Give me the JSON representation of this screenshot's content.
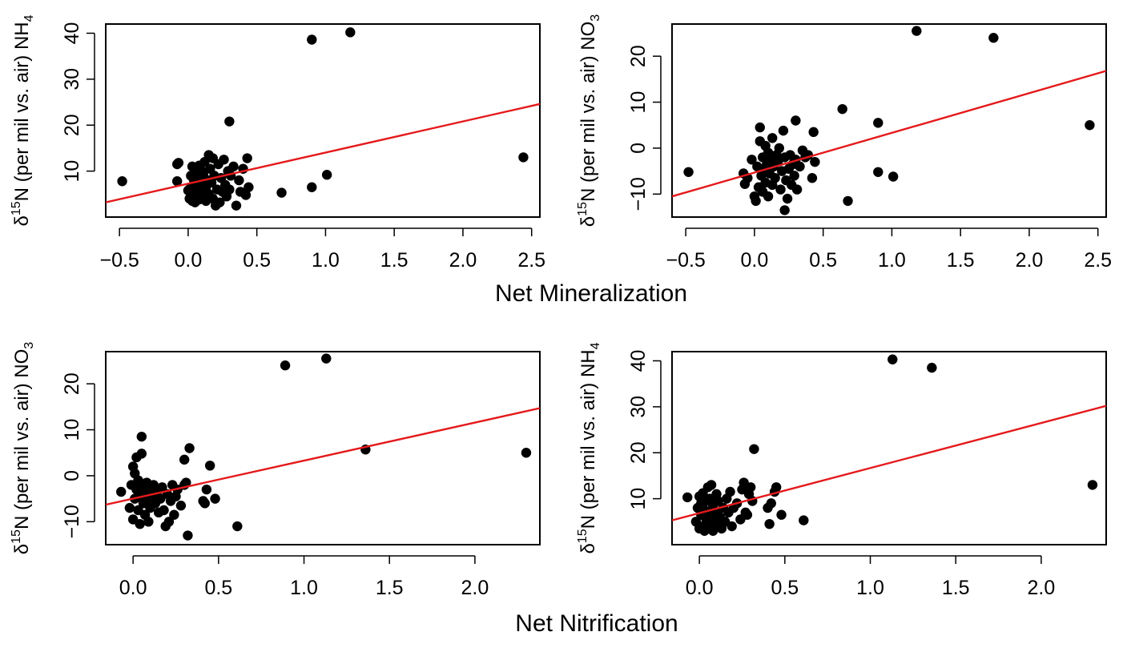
{
  "figure": {
    "xlabel_top": "Net Mineralization",
    "xlabel_bottom": "Net Nitrification"
  },
  "chart_data": [
    {
      "type": "scatter",
      "panel": "top-left",
      "ylabel": {
        "pre": "δ",
        "sup": "15",
        "main": "N (per mil vs. air) NH",
        "sub": "4"
      },
      "xlabel": "Net Mineralization",
      "xlim": [
        -0.6,
        2.56
      ],
      "ylim": [
        0,
        42
      ],
      "xticks": [
        "-0.5",
        "0.0",
        "0.5",
        "1.0",
        "1.5",
        "2.0",
        "2.5"
      ],
      "yticks": [
        "10",
        "20",
        "30",
        "40"
      ],
      "x": [
        -0.48,
        -0.08,
        -0.07,
        -0.08,
        0.0,
        0.01,
        0.02,
        0.02,
        0.03,
        0.03,
        0.04,
        0.04,
        0.05,
        0.05,
        0.06,
        0.06,
        0.07,
        0.07,
        0.08,
        0.08,
        0.09,
        0.09,
        0.1,
        0.1,
        0.11,
        0.11,
        0.12,
        0.13,
        0.13,
        0.14,
        0.15,
        0.15,
        0.16,
        0.17,
        0.18,
        0.18,
        0.19,
        0.2,
        0.21,
        0.22,
        0.23,
        0.24,
        0.25,
        0.26,
        0.27,
        0.28,
        0.29,
        0.3,
        0.31,
        0.33,
        0.35,
        0.37,
        0.38,
        0.4,
        0.42,
        0.43,
        0.44,
        0.3,
        0.68,
        0.9,
        0.9,
        1.01,
        1.18,
        2.44
      ],
      "y": [
        7.8,
        11.5,
        11.8,
        7.8,
        5.8,
        4.0,
        9.0,
        6.5,
        11.0,
        3.5,
        8.2,
        5.0,
        10.5,
        3.2,
        7.0,
        4.5,
        9.8,
        6.0,
        11.2,
        3.8,
        8.5,
        5.5,
        10.0,
        7.2,
        4.2,
        9.2,
        12.0,
        6.5,
        3.5,
        8.0,
        13.5,
        5.0,
        10.5,
        7.5,
        4.0,
        12.8,
        9.0,
        2.5,
        6.0,
        11.5,
        3.2,
        8.5,
        5.5,
        12.5,
        7.0,
        4.5,
        10.0,
        6.0,
        9.0,
        11.0,
        2.5,
        8.0,
        5.5,
        10.5,
        4.8,
        12.8,
        6.5,
        20.8,
        5.3,
        6.5,
        38.6,
        9.2,
        40.2,
        13.0
      ],
      "fit": {
        "x": [
          -0.6,
          2.56
        ],
        "y": [
          3.2,
          24.6
        ]
      }
    },
    {
      "type": "scatter",
      "panel": "top-right",
      "ylabel": {
        "pre": "δ",
        "sup": "15",
        "main": "N (per mil vs. air) NO",
        "sub": "3"
      },
      "xlabel": "Net Mineralization",
      "xlim": [
        -0.6,
        2.56
      ],
      "ylim": [
        -15,
        27
      ],
      "xticks": [
        "-0.5",
        "0.0",
        "0.5",
        "1.0",
        "1.5",
        "2.0",
        "2.5"
      ],
      "yticks": [
        "-10",
        "0",
        "10",
        "20"
      ],
      "x": [
        -0.48,
        -0.08,
        -0.07,
        -0.05,
        -0.02,
        0.0,
        0.01,
        0.02,
        0.03,
        0.04,
        0.04,
        0.05,
        0.06,
        0.06,
        0.07,
        0.08,
        0.08,
        0.09,
        0.1,
        0.1,
        0.11,
        0.12,
        0.13,
        0.13,
        0.14,
        0.15,
        0.16,
        0.17,
        0.18,
        0.19,
        0.2,
        0.21,
        0.22,
        0.23,
        0.24,
        0.25,
        0.26,
        0.27,
        0.28,
        0.29,
        0.3,
        0.31,
        0.33,
        0.35,
        0.37,
        0.39,
        0.42,
        0.43,
        0.44,
        0.22,
        0.3,
        0.64,
        0.68,
        0.9,
        0.9,
        1.01,
        1.18,
        1.74,
        2.44
      ],
      "y": [
        -5.2,
        -5.5,
        -7.8,
        -6.5,
        -2.5,
        -10.5,
        -11.5,
        -4.0,
        -8.5,
        1.5,
        4.5,
        -6.0,
        -2.0,
        -9.5,
        -4.5,
        0.5,
        -7.5,
        -3.5,
        -1.0,
        -10.5,
        -5.5,
        -2.5,
        2.2,
        -8.0,
        -4.0,
        -6.5,
        -1.5,
        -3.0,
        0.0,
        -9.0,
        -5.0,
        3.8,
        -2.0,
        -7.0,
        -11.0,
        -4.5,
        -1.5,
        -8.0,
        -3.5,
        -6.0,
        -2.5,
        -9.0,
        -4.0,
        -0.5,
        -2.0,
        -1.5,
        -6.5,
        3.5,
        -3.0,
        -13.5,
        6.0,
        8.5,
        -11.5,
        5.5,
        -5.2,
        -6.2,
        25.5,
        24.0,
        5.0
      ],
      "fit": {
        "x": [
          -0.6,
          2.56
        ],
        "y": [
          -10.5,
          16.8
        ]
      }
    },
    {
      "type": "scatter",
      "panel": "bottom-left",
      "ylabel": {
        "pre": "δ",
        "sup": "15",
        "main": "N (per mil vs. air) NO",
        "sub": "3"
      },
      "xlabel": "Net Nitrification",
      "xlim": [
        -0.16,
        2.38
      ],
      "ylim": [
        -15,
        27
      ],
      "xticks": [
        "0.0",
        "0.5",
        "1.0",
        "1.5",
        "2.0"
      ],
      "yticks": [
        "-10",
        "0",
        "10",
        "20"
      ],
      "x": [
        -0.07,
        -0.02,
        -0.01,
        0.0,
        0.0,
        0.01,
        0.01,
        0.02,
        0.02,
        0.03,
        0.03,
        0.04,
        0.04,
        0.05,
        0.05,
        0.05,
        0.06,
        0.06,
        0.07,
        0.08,
        0.08,
        0.09,
        0.1,
        0.1,
        0.11,
        0.12,
        0.13,
        0.14,
        0.15,
        0.16,
        0.17,
        0.18,
        0.19,
        0.2,
        0.21,
        0.22,
        0.23,
        0.24,
        0.25,
        0.26,
        0.28,
        0.3,
        0.31,
        0.33,
        0.32,
        0.3,
        0.41,
        0.42,
        0.43,
        0.45,
        0.48,
        0.61,
        0.89,
        1.13,
        1.36,
        2.3
      ],
      "y": [
        -3.5,
        -7.0,
        -2.0,
        2.0,
        -9.5,
        0.5,
        -5.0,
        -3.0,
        4.0,
        -7.5,
        -1.0,
        -4.5,
        -10.5,
        8.5,
        -2.0,
        4.8,
        -6.0,
        -3.5,
        -8.5,
        -1.5,
        -5.5,
        -10.0,
        -3.0,
        -7.0,
        -4.5,
        -2.0,
        -6.0,
        -3.5,
        -8.0,
        -5.0,
        -2.5,
        -7.5,
        -11.0,
        -4.0,
        -10.0,
        -5.5,
        -2.0,
        -8.5,
        -4.5,
        -3.0,
        -6.5,
        -2.0,
        -1.5,
        6.0,
        -13.0,
        3.5,
        -5.5,
        -6.0,
        -3.0,
        2.2,
        -5.0,
        -11.0,
        24.0,
        25.5,
        5.7,
        5.0
      ],
      "fit": {
        "x": [
          -0.16,
          2.38
        ],
        "y": [
          -6.3,
          14.7
        ]
      }
    },
    {
      "type": "scatter",
      "panel": "bottom-right",
      "ylabel": {
        "pre": "δ",
        "sup": "15",
        "main": "N (per mil vs. air) NH",
        "sub": "4"
      },
      "xlabel": "Net Nitrification",
      "xlim": [
        -0.16,
        2.38
      ],
      "ylim": [
        0,
        42
      ],
      "xticks": [
        "0.0",
        "0.5",
        "1.0",
        "1.5",
        "2.0"
      ],
      "yticks": [
        "10",
        "20",
        "30",
        "40"
      ],
      "x": [
        -0.07,
        -0.02,
        -0.01,
        0.0,
        0.0,
        0.01,
        0.01,
        0.02,
        0.02,
        0.03,
        0.03,
        0.04,
        0.04,
        0.05,
        0.05,
        0.06,
        0.06,
        0.07,
        0.07,
        0.08,
        0.08,
        0.09,
        0.1,
        0.1,
        0.11,
        0.11,
        0.12,
        0.13,
        0.14,
        0.15,
        0.16,
        0.17,
        0.18,
        0.19,
        0.2,
        0.22,
        0.24,
        0.25,
        0.26,
        0.27,
        0.28,
        0.29,
        0.3,
        0.31,
        0.32,
        0.4,
        0.41,
        0.42,
        0.44,
        0.45,
        0.48,
        0.61,
        1.13,
        1.36,
        2.3
      ],
      "y": [
        10.3,
        5.0,
        8.0,
        10.5,
        3.5,
        6.5,
        9.0,
        4.0,
        11.2,
        7.5,
        3.0,
        9.5,
        5.5,
        12.5,
        7.0,
        4.0,
        10.0,
        6.0,
        13.0,
        8.5,
        3.0,
        5.5,
        11.0,
        7.0,
        4.5,
        9.5,
        6.0,
        3.5,
        8.0,
        5.0,
        10.0,
        7.0,
        11.5,
        4.0,
        8.0,
        9.0,
        5.5,
        12.0,
        13.5,
        7.0,
        6.5,
        11.0,
        12.5,
        9.5,
        20.8,
        8.0,
        4.5,
        9.0,
        11.5,
        12.5,
        6.5,
        5.3,
        40.3,
        38.5,
        13.0
      ],
      "fit": {
        "x": [
          -0.16,
          2.38
        ],
        "y": [
          5.3,
          30.2
        ]
      }
    }
  ]
}
